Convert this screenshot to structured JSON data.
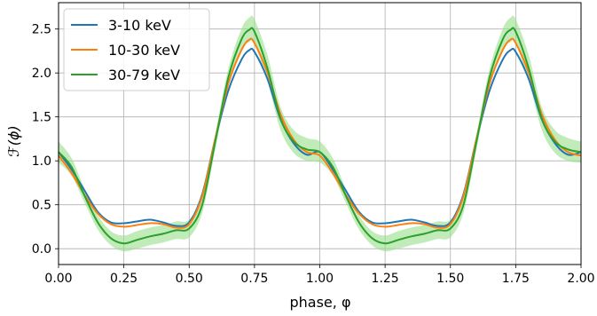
{
  "chart_data": {
    "type": "line",
    "xlabel": "phase, φ",
    "ylabel_tex": "ℱ(ϕ)",
    "xlim": [
      0.0,
      2.0
    ],
    "ylim": [
      -0.18,
      2.8
    ],
    "grid": true,
    "legend_placement": "top-left",
    "x_ticks": [
      0.0,
      0.25,
      0.5,
      0.75,
      1.0,
      1.25,
      1.5,
      1.75,
      2.0
    ],
    "x_tick_labels": [
      "0.00",
      "0.25",
      "0.50",
      "0.75",
      "1.00",
      "1.25",
      "1.50",
      "1.75",
      "2.00"
    ],
    "y_ticks": [
      0.0,
      0.5,
      1.0,
      1.5,
      2.0,
      2.5
    ],
    "y_tick_labels": [
      "0.0",
      "0.5",
      "1.0",
      "1.5",
      "2.0",
      "2.5"
    ],
    "x": [
      0.0,
      0.05,
      0.1,
      0.15,
      0.2,
      0.25,
      0.3,
      0.35,
      0.4,
      0.45,
      0.5,
      0.55,
      0.6,
      0.65,
      0.7,
      0.73,
      0.75,
      0.8,
      0.85,
      0.9,
      0.95,
      1.0
    ],
    "series": [
      {
        "name": "3-10 keV",
        "color": "#1f77b4",
        "values": [
          1.1,
          0.9,
          0.66,
          0.42,
          0.3,
          0.29,
          0.31,
          0.33,
          0.3,
          0.26,
          0.3,
          0.62,
          1.25,
          1.8,
          2.15,
          2.26,
          2.24,
          1.93,
          1.47,
          1.2,
          1.07,
          1.1
        ]
      },
      {
        "name": "10-30 keV",
        "color": "#ff7f0e",
        "values": [
          1.06,
          0.86,
          0.61,
          0.4,
          0.28,
          0.25,
          0.27,
          0.29,
          0.28,
          0.24,
          0.28,
          0.6,
          1.25,
          1.88,
          2.26,
          2.38,
          2.34,
          2.0,
          1.53,
          1.24,
          1.1,
          1.06
        ]
      },
      {
        "name": "30-79 keV",
        "color": "#2ca02c",
        "band_color": "#98df8a",
        "values": [
          1.1,
          0.93,
          0.6,
          0.3,
          0.12,
          0.06,
          0.1,
          0.14,
          0.17,
          0.21,
          0.23,
          0.5,
          1.22,
          1.95,
          2.38,
          2.49,
          2.47,
          2.05,
          1.48,
          1.22,
          1.13,
          1.1
        ],
        "band_halfwidth": [
          0.12,
          0.1,
          0.08,
          0.08,
          0.08,
          0.09,
          0.1,
          0.1,
          0.1,
          0.1,
          0.1,
          0.09,
          0.09,
          0.1,
          0.12,
          0.14,
          0.14,
          0.15,
          0.13,
          0.13,
          0.13,
          0.12
        ]
      }
    ]
  }
}
